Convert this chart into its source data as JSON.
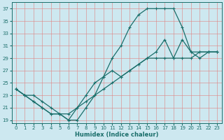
{
  "xlabel": "Humidex (Indice chaleur)",
  "bg_color": "#cde8f0",
  "grid_color": "#e08080",
  "line_color": "#1a6e6a",
  "marker": "+",
  "markersize": 3,
  "markeredgewidth": 0.8,
  "linewidth": 0.9,
  "xlim": [
    -0.5,
    23.5
  ],
  "ylim": [
    18.5,
    38
  ],
  "xticks": [
    0,
    1,
    2,
    3,
    4,
    5,
    6,
    7,
    8,
    9,
    10,
    11,
    12,
    13,
    14,
    15,
    16,
    17,
    18,
    19,
    20,
    21,
    22,
    23
  ],
  "yticks": [
    19,
    21,
    23,
    25,
    27,
    29,
    31,
    33,
    35,
    37
  ],
  "line1_x": [
    0,
    1,
    2,
    3,
    4,
    5,
    6,
    7,
    8,
    9,
    10,
    11,
    12,
    13,
    14,
    15,
    16,
    17,
    18,
    19,
    20,
    21,
    22,
    23
  ],
  "line1_y": [
    24,
    23,
    23,
    22,
    21,
    20,
    19,
    19,
    21,
    23,
    26,
    29,
    31,
    34,
    36,
    37,
    37,
    37,
    37,
    34,
    30,
    30,
    30,
    30
  ],
  "line2_x": [
    0,
    1,
    2,
    3,
    4,
    5,
    6,
    7,
    8,
    9,
    10,
    11,
    12,
    13,
    14,
    15,
    16,
    17,
    18,
    19,
    20,
    21,
    22,
    23
  ],
  "line2_y": [
    24,
    23,
    22,
    21,
    20,
    20,
    19,
    21,
    23,
    25,
    26,
    27,
    26,
    27,
    28,
    29,
    30,
    32,
    29,
    32,
    30,
    29,
    30,
    30
  ],
  "line3_x": [
    0,
    1,
    2,
    3,
    4,
    5,
    6,
    7,
    8,
    9,
    10,
    11,
    12,
    13,
    14,
    15,
    16,
    17,
    18,
    19,
    20,
    21,
    22,
    23
  ],
  "line3_y": [
    24,
    23,
    22,
    21,
    20,
    20,
    20,
    21,
    22,
    23,
    24,
    25,
    26,
    27,
    28,
    29,
    29,
    29,
    29,
    29,
    29,
    30,
    30,
    30
  ],
  "xlabel_fontsize": 6,
  "xlabel_bold": true,
  "tick_fontsize": 5,
  "tick_color": "#1a6e6a"
}
